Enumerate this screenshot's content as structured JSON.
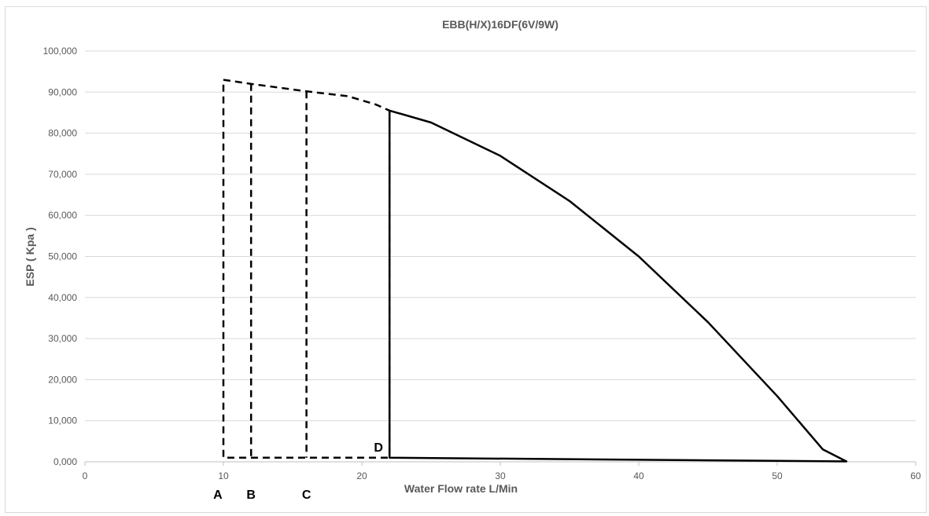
{
  "chart_data": {
    "type": "line",
    "title": "EBB(H/X)16DF(6V/9W)",
    "xlabel": "Water Flow rate  L/Min",
    "ylabel": "ESP ( Kpa )",
    "xlim": [
      0,
      60
    ],
    "ylim": [
      0,
      100
    ],
    "x_ticks": [
      "0",
      "10",
      "20",
      "30",
      "40",
      "50",
      "60"
    ],
    "y_ticks": [
      "0,000",
      "10,000",
      "20,000",
      "30,000",
      "40,000",
      "50,000",
      "60,000",
      "70,000",
      "80,000",
      "90,000",
      "100,000"
    ],
    "grid": "horizontal",
    "legend": "none",
    "colors": {
      "line": "#000000",
      "grid": "#d9d9d9",
      "axis": "#bfbfbf",
      "text": "#595959"
    },
    "series": [
      {
        "style": "dashed",
        "points": [
          [
            10,
            93
          ],
          [
            12,
            92
          ],
          [
            16,
            90.2
          ],
          [
            19,
            89
          ],
          [
            21,
            87
          ],
          [
            22,
            85.5
          ],
          [
            22,
            1
          ],
          [
            10,
            1
          ],
          [
            10,
            93
          ]
        ]
      },
      {
        "style": "dashed",
        "points": [
          [
            12,
            92
          ],
          [
            12,
            1
          ]
        ]
      },
      {
        "style": "dashed",
        "points": [
          [
            16,
            90.2
          ],
          [
            16,
            1
          ]
        ]
      },
      {
        "style": "solid",
        "points": [
          [
            22,
            85.5
          ],
          [
            25,
            82.6
          ],
          [
            30,
            74.5
          ],
          [
            35,
            63.5
          ],
          [
            40,
            50
          ],
          [
            45,
            34
          ],
          [
            50,
            16
          ],
          [
            53.3,
            3
          ],
          [
            55,
            0.1
          ],
          [
            22,
            1
          ],
          [
            22,
            85.5
          ]
        ]
      }
    ],
    "annotations": [
      {
        "text": "A",
        "x": 9.6
      },
      {
        "text": "B",
        "x": 12
      },
      {
        "text": "C",
        "x": 16
      },
      {
        "text": "D",
        "x": 21.2
      }
    ]
  }
}
